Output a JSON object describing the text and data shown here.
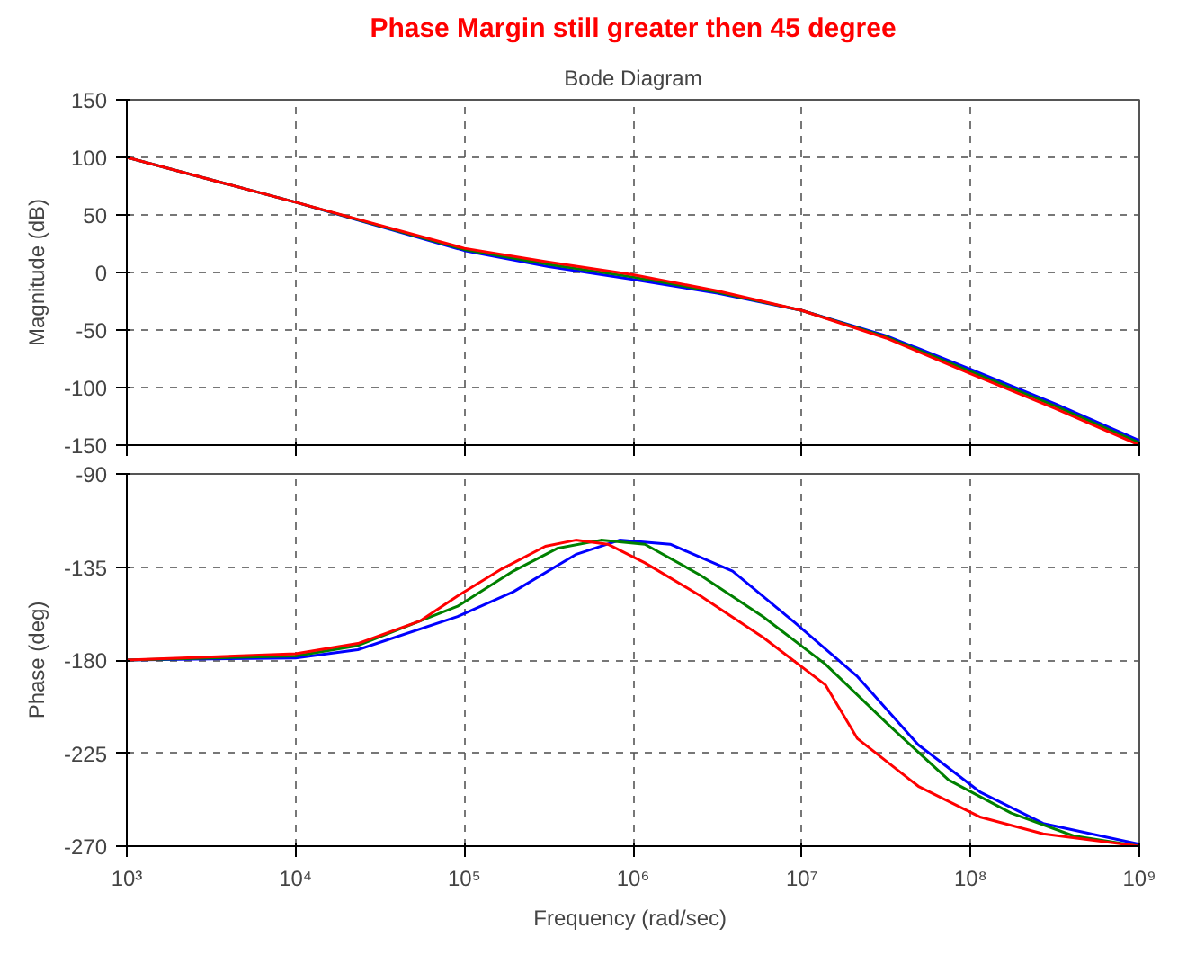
{
  "chart_data": [
    {
      "type": "line",
      "title": "Phase Margin still greater then 45 degree",
      "subtitle": "Bode Diagram",
      "ylabel": "Magnitude (dB)",
      "log": "x",
      "grid": true,
      "tick_labels": "y",
      "line_style": "solid",
      "xlim": [
        1000,
        1000000000
      ],
      "xticks": [
        {
          "value": 1000,
          "label": null
        },
        {
          "value": 10000,
          "label": null
        },
        {
          "value": 100000,
          "label": null
        },
        {
          "value": 1000000,
          "label": null
        },
        {
          "value": 10000000,
          "label": null
        },
        {
          "value": 100000000,
          "label": null
        },
        {
          "value": 1000000000,
          "label": null
        }
      ],
      "ylim": [
        -150,
        150
      ],
      "yticks": [
        -150,
        -100,
        -50,
        0,
        50,
        100,
        150
      ],
      "x": [
        1000,
        10000,
        100000,
        316000,
        1000000,
        3160000,
        10000000,
        31600000,
        100000000,
        316000000,
        1000000000
      ],
      "series": [
        {
          "color": "#0000ff",
          "values": [
            100,
            61,
            19,
            5,
            -6,
            -18,
            -33,
            -55,
            -84,
            -114,
            -146
          ]
        },
        {
          "color": "#008000",
          "values": [
            100,
            61,
            20,
            7,
            -4,
            -17,
            -33,
            -56,
            -86,
            -116,
            -148
          ]
        },
        {
          "color": "#ff0000",
          "values": [
            100,
            61,
            21,
            9,
            -2,
            -16,
            -33,
            -57,
            -88,
            -118,
            -150
          ]
        }
      ]
    },
    {
      "type": "line",
      "ylabel": "Phase (deg)",
      "xlabel": "Frequency  (rad/sec)",
      "log": "x",
      "grid": true,
      "line_style": "solid",
      "xlim": [
        1000,
        1000000000
      ],
      "xticks": [
        {
          "value": 1000,
          "label": "10³"
        },
        {
          "value": 10000,
          "label": "10⁴"
        },
        {
          "value": 100000,
          "label": "10⁵"
        },
        {
          "value": 1000000,
          "label": "10⁶"
        },
        {
          "value": 10000000,
          "label": "10⁷"
        },
        {
          "value": 100000000,
          "label": "10⁸"
        },
        {
          "value": 1000000000,
          "label": "10⁹"
        }
      ],
      "ylim": [
        -270,
        -90
      ],
      "yticks": [
        -270,
        -225,
        -180,
        -135,
        -90
      ],
      "series": [
        {
          "color": "#0000ff",
          "x": [
            1000,
            10000,
            23400,
            91200,
            195000,
            457000,
            832000,
            1660000,
            3890000,
            9120000,
            21380000,
            48980000,
            114800000,
            269200000,
            1000000000
          ],
          "values": [
            -180,
            -179,
            -175,
            -159,
            -147,
            -129,
            -122,
            -124,
            -137,
            -162,
            -188,
            -221,
            -244,
            -259,
            -269
          ]
        },
        {
          "color": "#008000",
          "x": [
            1000,
            10000,
            23400,
            91200,
            195000,
            355000,
            646000,
            1175000,
            2512000,
            5888000,
            13800000,
            32360000,
            74130000,
            173800000,
            407400000,
            1000000000
          ],
          "values": [
            -180,
            -178,
            -173,
            -154,
            -137,
            -126,
            -122,
            -124,
            -139,
            -159,
            -182,
            -211,
            -238,
            -254,
            -265,
            -270
          ]
        },
        {
          "color": "#ff0000",
          "x": [
            1000,
            10000,
            23400,
            55000,
            91200,
            166000,
            302000,
            457000,
            708000,
            1175000,
            2512000,
            5888000,
            13800000,
            21380000,
            48980000,
            114800000,
            269200000,
            1000000000
          ],
          "values": [
            -180,
            -177,
            -172,
            -161,
            -149,
            -136,
            -125,
            -122,
            -124,
            -133,
            -149,
            -169,
            -192,
            -218,
            -241,
            -256,
            -264,
            -270
          ]
        }
      ]
    }
  ]
}
